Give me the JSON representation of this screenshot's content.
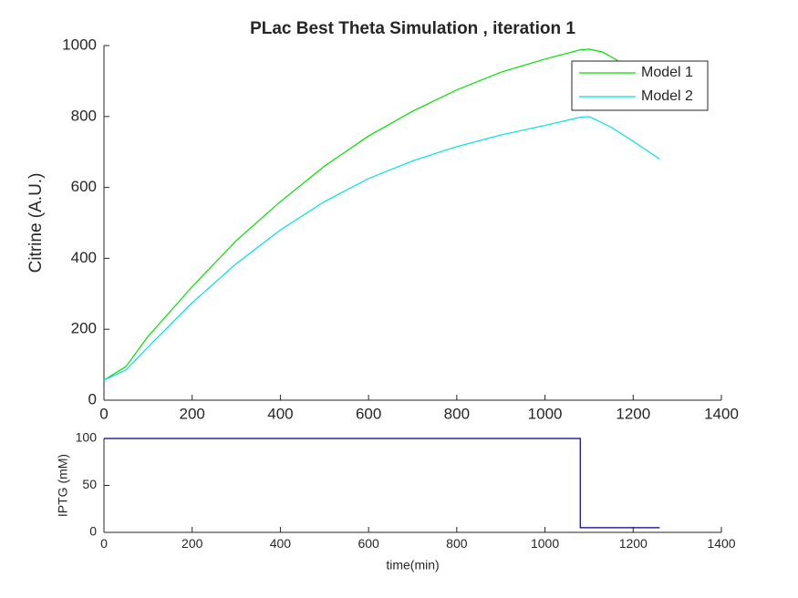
{
  "chart_data": [
    {
      "type": "line",
      "title": "PLac Best Theta Simulation , iteration 1",
      "y_label": "Citrine (A.U.)",
      "xlim": [
        0,
        1400
      ],
      "xticks": [
        0,
        200,
        400,
        600,
        800,
        1000,
        1200,
        1400
      ],
      "ylim": [
        0,
        1000
      ],
      "yticks": [
        0,
        200,
        400,
        600,
        800,
        1000
      ],
      "grid": false,
      "legend": "northeast",
      "series": [
        {
          "name": "Model 1",
          "color": "#00e000",
          "x": [
            0,
            50,
            100,
            200,
            300,
            400,
            500,
            600,
            700,
            800,
            900,
            1000,
            1080,
            1100,
            1130,
            1165
          ],
          "values": [
            57,
            95,
            180,
            320,
            450,
            560,
            660,
            745,
            815,
            875,
            925,
            962,
            988,
            990,
            982,
            958
          ]
        },
        {
          "name": "Model 2",
          "color": "#00e0e0",
          "x": [
            0,
            50,
            100,
            200,
            300,
            400,
            500,
            600,
            700,
            800,
            900,
            1000,
            1080,
            1100,
            1150,
            1200,
            1260
          ],
          "values": [
            57,
            85,
            150,
            275,
            385,
            480,
            560,
            625,
            675,
            715,
            748,
            775,
            798,
            800,
            770,
            730,
            680
          ]
        }
      ]
    },
    {
      "type": "line",
      "y_label": "IPTG (mM)",
      "x_label": "time(min)",
      "xlim": [
        0,
        1400
      ],
      "xticks": [
        0,
        200,
        400,
        600,
        800,
        1000,
        1200,
        1400
      ],
      "ylim": [
        0,
        100
      ],
      "yticks": [
        0,
        50,
        100
      ],
      "grid": false,
      "series": [
        {
          "color": "#000080",
          "x": [
            0,
            1080,
            1080,
            1260
          ],
          "values": [
            100,
            100,
            5,
            5
          ]
        }
      ]
    }
  ]
}
